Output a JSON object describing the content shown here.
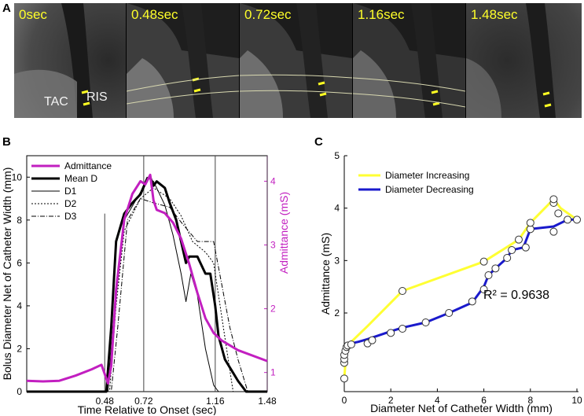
{
  "panel_a": {
    "letter": "A",
    "frames": [
      {
        "label": "0sec"
      },
      {
        "label": "0.48sec"
      },
      {
        "label": "0.72sec"
      },
      {
        "label": "1.16sec"
      },
      {
        "label": "1.48sec"
      }
    ],
    "tac_label": "TAC",
    "ris_label": "RIS"
  },
  "colors": {
    "admittance": "#c21fc0",
    "increasing": "#ffff33",
    "decreasing": "#1a1acc",
    "frame_text": "#ffff2a"
  },
  "chart_data": [
    {
      "type": "line",
      "panel": "B",
      "xlabel": "Time Relative to Onset (sec)",
      "ylabel": "Bolus Diameter Net of Catheter Width (mm)",
      "ylabel_right": "Admittance (mS)",
      "xlim": [
        0,
        1.48
      ],
      "ylim": [
        0,
        11
      ],
      "ylim_right": [
        0.7,
        4.4
      ],
      "xticks": [
        "0.48",
        "0.72",
        "1.16",
        "1.48"
      ],
      "xtick_values": [
        0.48,
        0.72,
        1.16,
        1.48
      ],
      "yticks": [
        "0",
        "2",
        "4",
        "6",
        "8",
        "10"
      ],
      "ytick_values": [
        0,
        2,
        4,
        6,
        8,
        10
      ],
      "yticks_right": [
        "1",
        "2",
        "3",
        "4"
      ],
      "ytick_right_values": [
        1,
        2,
        3,
        4
      ],
      "vlines": [
        0.48,
        0.72,
        1.16,
        1.48
      ],
      "legend": [
        "Admittance",
        "Mean D",
        "D1",
        "D2",
        "D3"
      ],
      "series": [
        {
          "name": "Admittance",
          "axis": "right",
          "x": [
            0,
            0.1,
            0.2,
            0.3,
            0.4,
            0.46,
            0.5,
            0.52,
            0.55,
            0.6,
            0.65,
            0.7,
            0.73,
            0.76,
            0.78,
            0.8,
            0.85,
            0.9,
            0.95,
            1.0,
            1.05,
            1.1,
            1.15,
            1.2,
            1.3,
            1.48
          ],
          "y": [
            0.87,
            0.86,
            0.87,
            0.95,
            1.05,
            1.12,
            0.83,
            1.1,
            2.3,
            3.4,
            3.8,
            4.0,
            3.95,
            4.1,
            3.7,
            3.55,
            3.5,
            3.35,
            3.1,
            2.7,
            2.25,
            1.85,
            1.62,
            1.5,
            1.35,
            1.18
          ]
        },
        {
          "name": "Mean D",
          "axis": "left",
          "x": [
            0,
            0.49,
            0.52,
            0.55,
            0.6,
            0.65,
            0.7,
            0.74,
            0.76,
            0.78,
            0.8,
            0.85,
            0.88,
            0.92,
            0.95,
            0.98,
            1.0,
            1.05,
            1.1,
            1.13,
            1.16,
            1.18,
            1.22,
            1.26,
            1.3,
            1.35,
            1.48
          ],
          "y": [
            0,
            0,
            3,
            7,
            8.3,
            8.8,
            9.2,
            9.9,
            10.0,
            9.6,
            9.8,
            9.5,
            8.8,
            8.0,
            7.0,
            6.0,
            6.3,
            6.3,
            5.5,
            5.5,
            4.0,
            2.6,
            1.5,
            1.0,
            0.5,
            0,
            0
          ]
        },
        {
          "name": "D1",
          "axis": "left",
          "x": [
            0,
            0.5,
            0.53,
            0.6,
            0.7,
            0.74,
            0.78,
            0.85,
            0.9,
            0.95,
            0.98,
            1.01,
            1.05,
            1.1,
            1.15,
            1.18,
            1.48
          ],
          "y": [
            0,
            0,
            3,
            8,
            9.3,
            10.0,
            9.8,
            8.7,
            7.3,
            5.5,
            4.2,
            5.5,
            4.5,
            2.0,
            0.3,
            0,
            0
          ]
        },
        {
          "name": "D2",
          "axis": "left",
          "x": [
            0,
            0.51,
            0.55,
            0.6,
            0.7,
            0.78,
            0.88,
            0.95,
            1.02,
            1.1,
            1.15,
            1.2,
            1.25,
            1.27,
            1.48
          ],
          "y": [
            0,
            0,
            4,
            7.5,
            9.0,
            9.5,
            9.0,
            8.2,
            7.0,
            6.5,
            6.0,
            3.5,
            1.0,
            0,
            0
          ]
        },
        {
          "name": "D3",
          "axis": "left",
          "x": [
            0,
            0.52,
            0.56,
            0.62,
            0.7,
            0.78,
            0.88,
            0.95,
            1.05,
            1.15,
            1.2,
            1.25,
            1.3,
            1.34,
            1.36,
            1.48
          ],
          "y": [
            0,
            0,
            3,
            8.0,
            9.0,
            8.8,
            8.6,
            7.9,
            7.0,
            7.0,
            5.0,
            3.0,
            1.5,
            0.5,
            0,
            0
          ]
        }
      ]
    },
    {
      "type": "line",
      "panel": "C",
      "xlabel": "Diameter Net of Catheter Width (mm)",
      "ylabel": "Admittance (mS)",
      "xlim": [
        0,
        10
      ],
      "ylim": [
        0.5,
        5
      ],
      "xticks": [
        "0",
        "2",
        "4",
        "6",
        "8",
        "10"
      ],
      "xtick_values": [
        0,
        2,
        4,
        6,
        8,
        10
      ],
      "yticks": [
        "2",
        "3",
        "4",
        "5"
      ],
      "ytick_values": [
        2,
        3,
        4,
        5
      ],
      "annotation": "R² = 0.9638",
      "legend": [
        "Diameter Increasing",
        "Diameter Decreasing"
      ],
      "series": [
        {
          "name": "Diameter Increasing",
          "x": [
            0,
            0.05,
            0.08,
            0.1,
            0.3,
            1,
            2.5,
            6,
            7.5,
            8,
            9,
            9.3,
            10
          ],
          "y": [
            0.75,
            1.05,
            1.2,
            1.32,
            1.45,
            1.75,
            2.42,
            2.98,
            3.4,
            3.72,
            4.17,
            4.0,
            3.78
          ]
        },
        {
          "name": "Diameter Decreasing",
          "x": [
            10,
            9.6,
            9,
            8,
            7.7,
            7.2,
            7.0,
            6.5,
            6.2,
            6.0,
            5.5,
            4.5,
            3.5,
            2.5,
            2.0,
            1.0,
            0.6,
            0.3,
            0.1,
            0.05,
            0
          ],
          "y": [
            3.78,
            3.78,
            3.65,
            3.6,
            3.25,
            3.2,
            3.05,
            2.85,
            2.72,
            2.5,
            2.2,
            2.0,
            1.82,
            1.72,
            1.65,
            1.5,
            1.45,
            1.42,
            1.35,
            1.25,
            1.12
          ]
        }
      ],
      "markers": [
        {
          "x": 0,
          "y": 0.75
        },
        {
          "x": 0,
          "y": 1.05
        },
        {
          "x": 0,
          "y": 1.12
        },
        {
          "x": 0,
          "y": 1.2
        },
        {
          "x": 0.05,
          "y": 1.28
        },
        {
          "x": 0.1,
          "y": 1.35
        },
        {
          "x": 0.15,
          "y": 1.38
        },
        {
          "x": 0.3,
          "y": 1.4
        },
        {
          "x": 1.0,
          "y": 1.42
        },
        {
          "x": 1.2,
          "y": 1.48
        },
        {
          "x": 2.0,
          "y": 1.62
        },
        {
          "x": 2.5,
          "y": 1.7
        },
        {
          "x": 2.5,
          "y": 2.42
        },
        {
          "x": 3.5,
          "y": 1.82
        },
        {
          "x": 4.5,
          "y": 2.0
        },
        {
          "x": 5.5,
          "y": 2.22
        },
        {
          "x": 6.0,
          "y": 2.45
        },
        {
          "x": 6.0,
          "y": 2.98
        },
        {
          "x": 6.2,
          "y": 2.72
        },
        {
          "x": 6.5,
          "y": 2.85
        },
        {
          "x": 7.0,
          "y": 3.05
        },
        {
          "x": 7.2,
          "y": 3.2
        },
        {
          "x": 7.5,
          "y": 3.4
        },
        {
          "x": 7.8,
          "y": 3.25
        },
        {
          "x": 8.0,
          "y": 3.6
        },
        {
          "x": 8.0,
          "y": 3.72
        },
        {
          "x": 9.0,
          "y": 3.55
        },
        {
          "x": 9.0,
          "y": 4.1
        },
        {
          "x": 9.0,
          "y": 4.17
        },
        {
          "x": 9.2,
          "y": 3.9
        },
        {
          "x": 9.6,
          "y": 3.78
        },
        {
          "x": 10,
          "y": 3.78
        }
      ]
    }
  ]
}
